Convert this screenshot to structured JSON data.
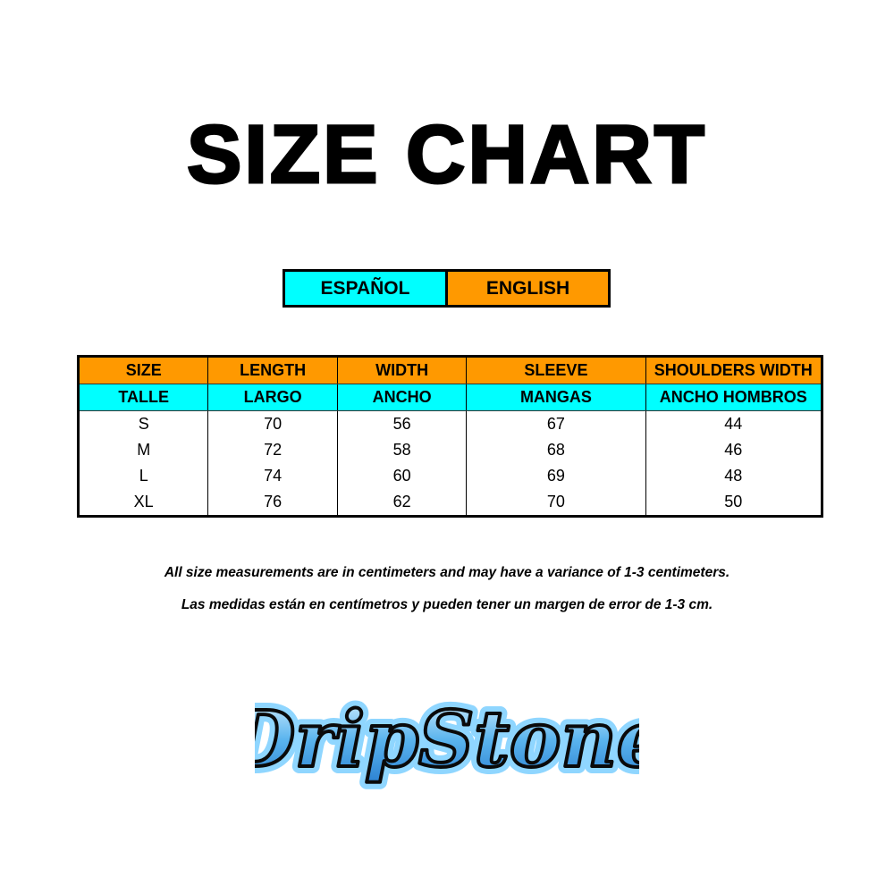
{
  "title": "SIZE CHART",
  "languages": {
    "es": "ESPAÑOL",
    "en": "ENGLISH"
  },
  "colors": {
    "spanish": "#00ffff",
    "english": "#ff9900"
  },
  "table": {
    "headers_en": [
      "SIZE",
      "LENGTH",
      "WIDTH",
      "SLEEVE",
      "SHOULDERS WIDTH"
    ],
    "headers_es": [
      "TALLE",
      "LARGO",
      "ANCHO",
      "MANGAS",
      "ANCHO HOMBROS"
    ],
    "rows": [
      [
        "S",
        "70",
        "56",
        "67",
        "44"
      ],
      [
        "M",
        "72",
        "58",
        "68",
        "46"
      ],
      [
        "L",
        "74",
        "60",
        "69",
        "48"
      ],
      [
        "XL",
        "76",
        "62",
        "70",
        "50"
      ]
    ]
  },
  "notes": {
    "en": "All size measurements are in centimeters and may have a variance of 1-3 centimeters.",
    "es": "Las medidas están en centímetros y pueden tener un margen de error de 1-3 cm."
  },
  "logo": {
    "text": "DripStone"
  }
}
